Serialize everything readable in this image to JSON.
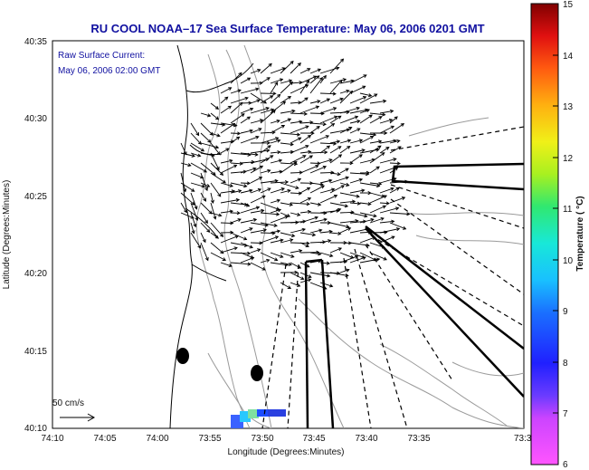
{
  "title": "RU COOL  NOAA–17  Sea Surface Temperature:  May 06, 2006 0201 GMT",
  "annotation": {
    "line1": "Raw Surface Current:",
    "line2": "May 06, 2006 02:00 GMT"
  },
  "scale_label": "50 cm/s",
  "colorbar": {
    "label": "Temperature ( °C)",
    "ticks": [
      "15",
      "14",
      "13",
      "12",
      "11",
      "10",
      "9",
      "8",
      "7",
      "6"
    ],
    "min": 6,
    "max": 15
  },
  "map": {
    "x_axis_label": "Longitude (Degrees:Minutes)",
    "y_axis_label": "Latitude (Degrees:Minutes)",
    "x_ticks": [
      "74:10",
      "74:05",
      "74:00",
      "73:55",
      "73:50",
      "73:45",
      "73:40",
      "73:35",
      "73:3"
    ],
    "y_ticks": [
      "40:35",
      "40:30",
      "40:25",
      "40:20",
      "40:15",
      "40:10"
    ]
  },
  "colors": {
    "title": "#1010a0",
    "vectors": "#000000",
    "bathymetry": "#9a9a9a",
    "coast": "#000000"
  }
}
